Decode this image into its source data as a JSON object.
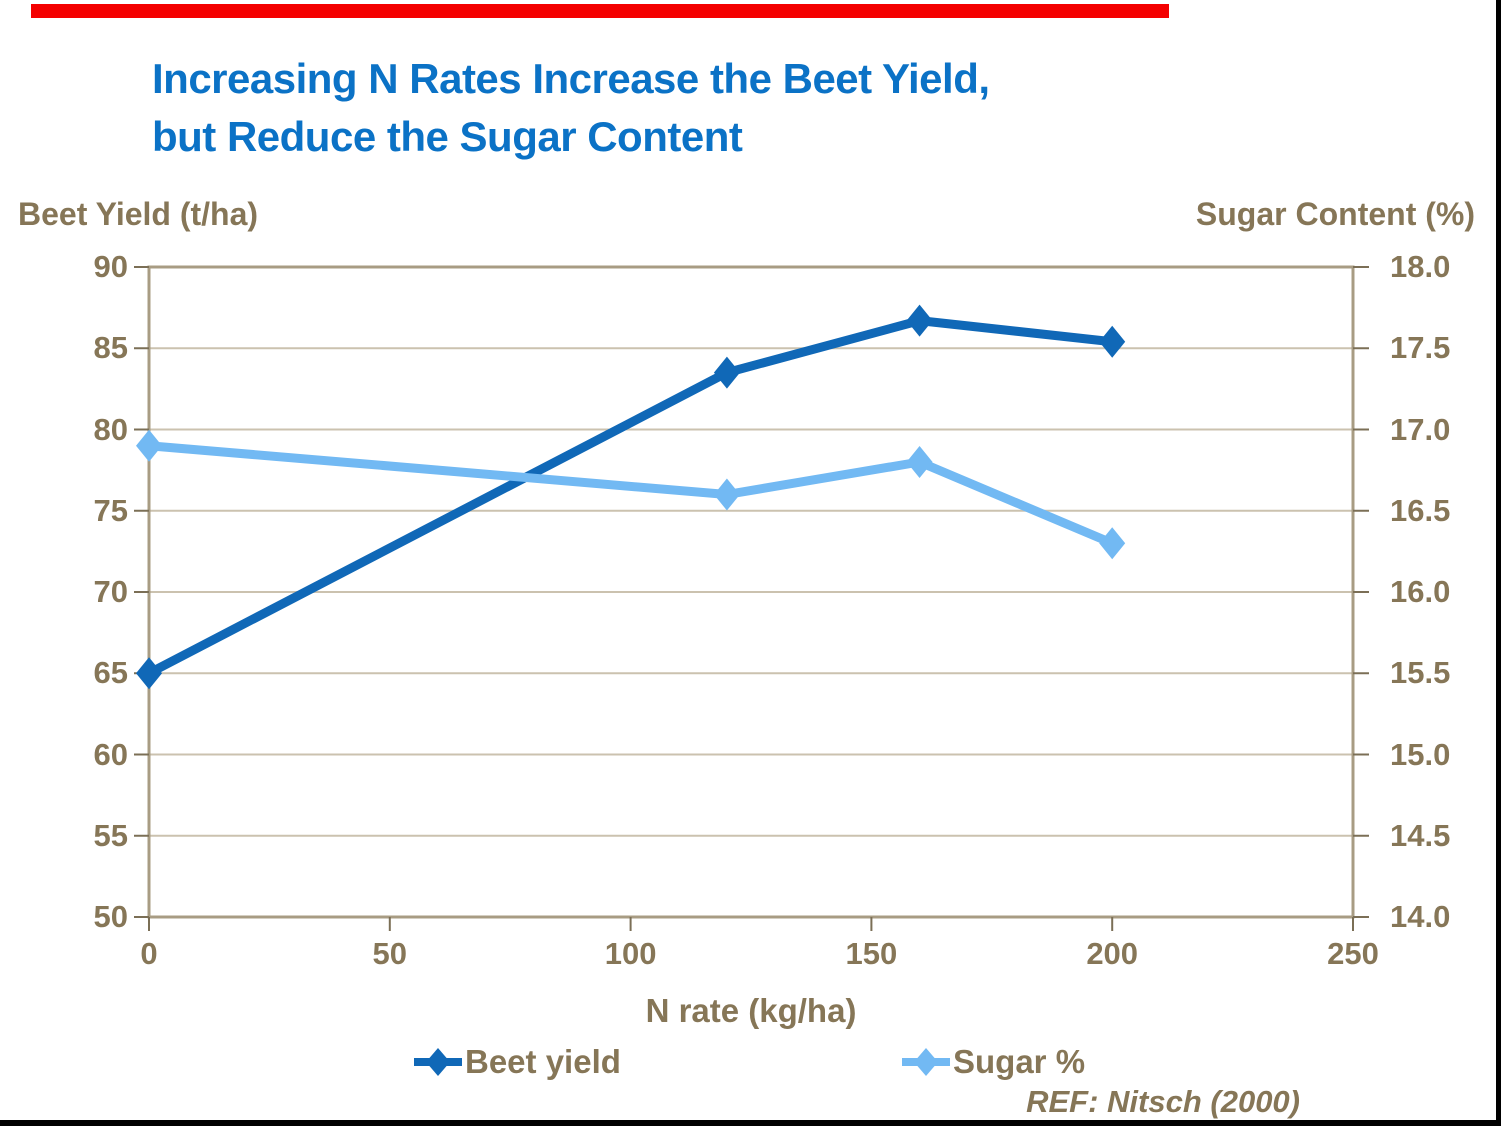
{
  "slide": {
    "title_line1": "Increasing N Rates Increase the Beet Yield,",
    "title_line2": "but Reduce the Sugar Content",
    "footer_ref": "REF: Nitsch (2000)"
  },
  "chart_data": {
    "type": "line",
    "title": "Increasing N Rates Increase the Beet Yield, but Reduce the Sugar Content",
    "x": [
      0,
      120,
      160,
      200
    ],
    "series": [
      {
        "name": "Beet yield",
        "axis": "left",
        "values": [
          65,
          83.5,
          86.7,
          85.4
        ],
        "color": "#1068B7"
      },
      {
        "name": "Sugar %",
        "axis": "right",
        "values": [
          16.9,
          16.6,
          16.8,
          16.3
        ],
        "color": "#72B9F3"
      }
    ],
    "xlabel": "N rate (kg/ha)",
    "ylabel_left": "Beet Yield (t/ha)",
    "ylabel_right": "Sugar Content (%)",
    "xlim": [
      0,
      250
    ],
    "ylim_left": [
      50,
      90
    ],
    "ylim_right": [
      14.0,
      18.0
    ],
    "xticks": [
      "0",
      "50",
      "100",
      "150",
      "200",
      "250"
    ],
    "yticks_left": [
      "90",
      "85",
      "80",
      "75",
      "70",
      "65",
      "60",
      "55",
      "50"
    ],
    "yticks_right": [
      "18.0",
      "17.5",
      "17.0",
      "16.5",
      "16.0",
      "15.5",
      "15.0",
      "14.5",
      "14.0"
    ],
    "grid": true,
    "legend_position": "bottom"
  },
  "colors": {
    "title_blue": "#0B72C6",
    "text_brown": "#867657",
    "grid_line": "#CBC2AF",
    "plot_border": "#A89C83",
    "tick_mark": "#7B6F56",
    "accent_red": "#F40000",
    "frame_black": "#000000",
    "beet_blue": "#1068B7",
    "sugar_blue": "#72B9F3"
  }
}
